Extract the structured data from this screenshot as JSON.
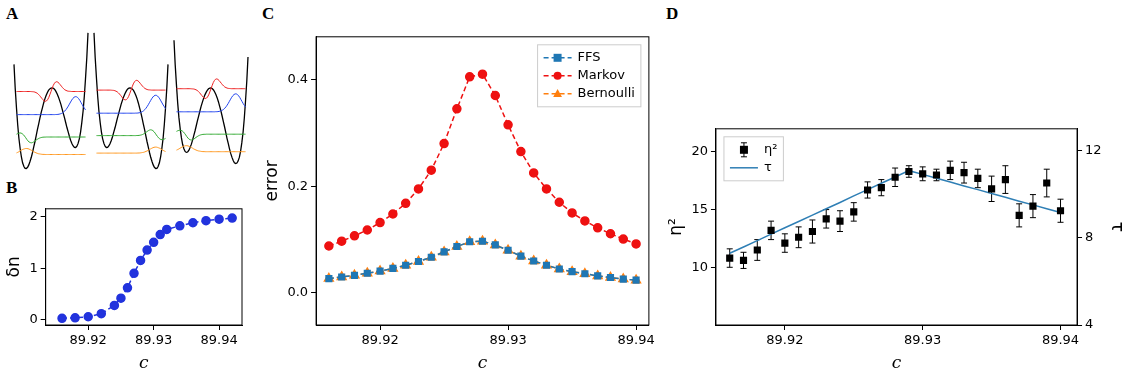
{
  "chart_data": [
    {
      "type": "diagram",
      "title": "A"
    },
    {
      "type": "line",
      "title": "B",
      "x_label": "c",
      "y_label": "δn",
      "x": [
        89.916,
        89.918,
        89.92,
        89.922,
        89.924,
        89.925,
        89.926,
        89.927,
        89.928,
        89.929,
        89.93,
        89.931,
        89.932,
        89.934,
        89.936,
        89.938,
        89.94,
        89.942
      ],
      "values": [
        0.03,
        0.04,
        0.06,
        0.12,
        0.28,
        0.42,
        0.62,
        0.9,
        1.15,
        1.35,
        1.5,
        1.65,
        1.75,
        1.82,
        1.88,
        1.92,
        1.95,
        1.97
      ],
      "color": "#2233dd",
      "marker": "circle",
      "line_style": "dashed",
      "xlim": [
        89.9135,
        89.9435
      ],
      "xticks": [
        89.92,
        89.93,
        89.94
      ],
      "ylim": [
        -0.1,
        2.15
      ],
      "yticks": [
        0,
        1,
        2
      ],
      "grid": false
    },
    {
      "type": "line",
      "title": "C",
      "x_label": "c",
      "y_label": "error",
      "x": [
        89.916,
        89.917,
        89.918,
        89.919,
        89.92,
        89.921,
        89.922,
        89.923,
        89.924,
        89.925,
        89.926,
        89.927,
        89.928,
        89.929,
        89.93,
        89.931,
        89.932,
        89.933,
        89.934,
        89.935,
        89.936,
        89.937,
        89.938,
        89.939,
        89.94
      ],
      "series": [
        {
          "name": "FFS",
          "color": "#1f77b4",
          "marker": "square",
          "line_style": "dashed",
          "values": [
            0.027,
            0.03,
            0.033,
            0.037,
            0.041,
            0.046,
            0.052,
            0.059,
            0.067,
            0.077,
            0.087,
            0.096,
            0.097,
            0.09,
            0.08,
            0.069,
            0.06,
            0.052,
            0.045,
            0.04,
            0.036,
            0.032,
            0.029,
            0.026,
            0.024
          ]
        },
        {
          "name": "Markov",
          "color": "#ee1111",
          "marker": "circle",
          "line_style": "dashed",
          "values": [
            0.088,
            0.097,
            0.107,
            0.118,
            0.132,
            0.148,
            0.168,
            0.195,
            0.23,
            0.28,
            0.345,
            0.405,
            0.41,
            0.37,
            0.315,
            0.265,
            0.225,
            0.195,
            0.17,
            0.15,
            0.135,
            0.122,
            0.111,
            0.101,
            0.092
          ]
        },
        {
          "name": "Bernoulli",
          "color": "#ff7f0e",
          "marker": "triangle",
          "line_style": "dashed",
          "values": [
            0.027,
            0.03,
            0.033,
            0.037,
            0.041,
            0.046,
            0.052,
            0.059,
            0.067,
            0.077,
            0.087,
            0.096,
            0.097,
            0.09,
            0.08,
            0.069,
            0.06,
            0.052,
            0.045,
            0.04,
            0.036,
            0.032,
            0.029,
            0.026,
            0.024
          ]
        }
      ],
      "legend": "top-right",
      "xlim": [
        89.915,
        89.941
      ],
      "xticks": [
        89.92,
        89.93,
        89.94
      ],
      "ylim": [
        -0.06,
        0.48
      ],
      "yticks": [
        {
          "value": 0,
          "label": "0.0"
        },
        {
          "value": 0.2,
          "label": "0.2"
        },
        {
          "value": 0.4,
          "label": "0.4"
        }
      ],
      "grid": false
    },
    {
      "type": "line",
      "title": "D",
      "x_label": "c",
      "y_label": "η²",
      "y2_label": "τ",
      "x": [
        89.916,
        89.917,
        89.918,
        89.919,
        89.92,
        89.921,
        89.922,
        89.923,
        89.924,
        89.925,
        89.926,
        89.927,
        89.928,
        89.929,
        89.93,
        89.931,
        89.932,
        89.933,
        89.934,
        89.935,
        89.936,
        89.937,
        89.938,
        89.939,
        89.94
      ],
      "series": [
        {
          "name": "η²",
          "type": "scatter",
          "color": "#000000",
          "marker": "square",
          "values": [
            10.8,
            10.6,
            11.5,
            13.2,
            12.1,
            12.6,
            13.1,
            14.2,
            14.0,
            14.8,
            16.7,
            16.9,
            17.8,
            18.3,
            18.1,
            18.0,
            18.4,
            18.2,
            17.7,
            16.8,
            17.6,
            14.5,
            15.3,
            17.3,
            14.9
          ],
          "errors": [
            0.8,
            0.7,
            0.9,
            0.8,
            0.8,
            0.9,
            1.0,
            0.8,
            0.9,
            0.8,
            0.7,
            0.7,
            0.8,
            0.5,
            0.6,
            0.5,
            0.8,
            0.9,
            0.8,
            1.1,
            1.2,
            1.0,
            1.0,
            1.2,
            1.0
          ]
        },
        {
          "name": "τ",
          "type": "line",
          "axis": "y2",
          "color": "#2f7fb5",
          "line_style": "solid",
          "values": [
            7.29,
            7.58,
            7.87,
            8.17,
            8.46,
            8.75,
            9.04,
            9.33,
            9.62,
            9.92,
            10.21,
            10.5,
            10.79,
            11.08,
            10.91,
            10.73,
            10.56,
            10.38,
            10.21,
            10.03,
            9.86,
            9.68,
            9.51,
            9.33,
            9.16
          ]
        }
      ],
      "legend": "top-left",
      "xlim": [
        89.915,
        89.9412
      ],
      "xticks": [
        89.92,
        89.93,
        89.94
      ],
      "ylim": [
        5,
        22
      ],
      "yticks": [
        10,
        15,
        20
      ],
      "y2lim": [
        4,
        13
      ],
      "y2ticks": [
        4,
        8,
        12
      ],
      "grid": false
    }
  ]
}
